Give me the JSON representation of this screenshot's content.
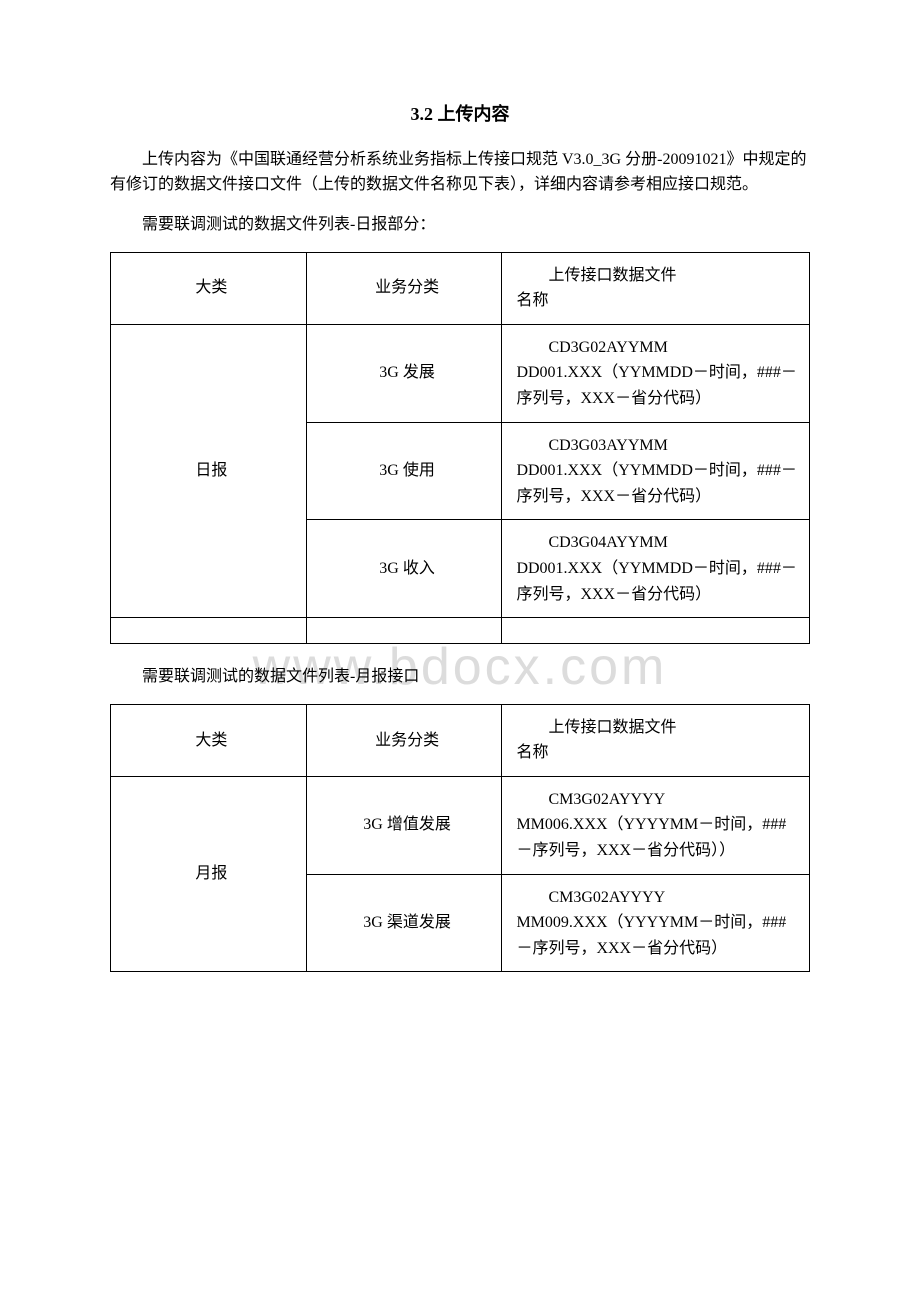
{
  "watermark": "www.bdocx.com",
  "heading": "3.2 上传内容",
  "intro_paragraph": "上传内容为《中国联通经营分析系统业务指标上传接口规范 V3.0_3G 分册-20091021》中规定的有修订的数据文件接口文件（上传的数据文件名称见下表），详细内容请参考相应接口规范。",
  "daily_intro": "需要联调测试的数据文件列表-日报部分：",
  "monthly_intro": "需要联调测试的数据文件列表-月报接口",
  "table_headers": {
    "category": "大类",
    "subcategory": "业务分类",
    "filename_line1": "上传接口数据文件",
    "filename_line2": "名称"
  },
  "daily_table": {
    "category": "日报",
    "rows": [
      {
        "subcategory": "3G 发展",
        "file_line1": "CD3G02AYYMM",
        "file_rest": "DD001.XXX（YYMMDD－时间，###－序列号，XXX－省分代码）"
      },
      {
        "subcategory": "3G 使用",
        "file_line1": "CD3G03AYYMM",
        "file_rest": "DD001.XXX（YYMMDD－时间，###－序列号，XXX－省分代码）"
      },
      {
        "subcategory": "3G 收入",
        "file_line1": "CD3G04AYYMM",
        "file_rest": "DD001.XXX（YYMMDD－时间，###－序列号，XXX－省分代码）"
      }
    ]
  },
  "monthly_table": {
    "category": "月报",
    "rows": [
      {
        "subcategory": "3G 增值发展",
        "file_line1": "CM3G02AYYYY",
        "file_rest": "MM006.XXX（YYYYMM－时间，###－序列号，XXX－省分代码））"
      },
      {
        "subcategory": "3G 渠道发展",
        "file_line1": "CM3G02AYYYY",
        "file_rest": "MM009.XXX（YYYYMM－时间，###－序列号，XXX－省分代码）"
      }
    ]
  }
}
